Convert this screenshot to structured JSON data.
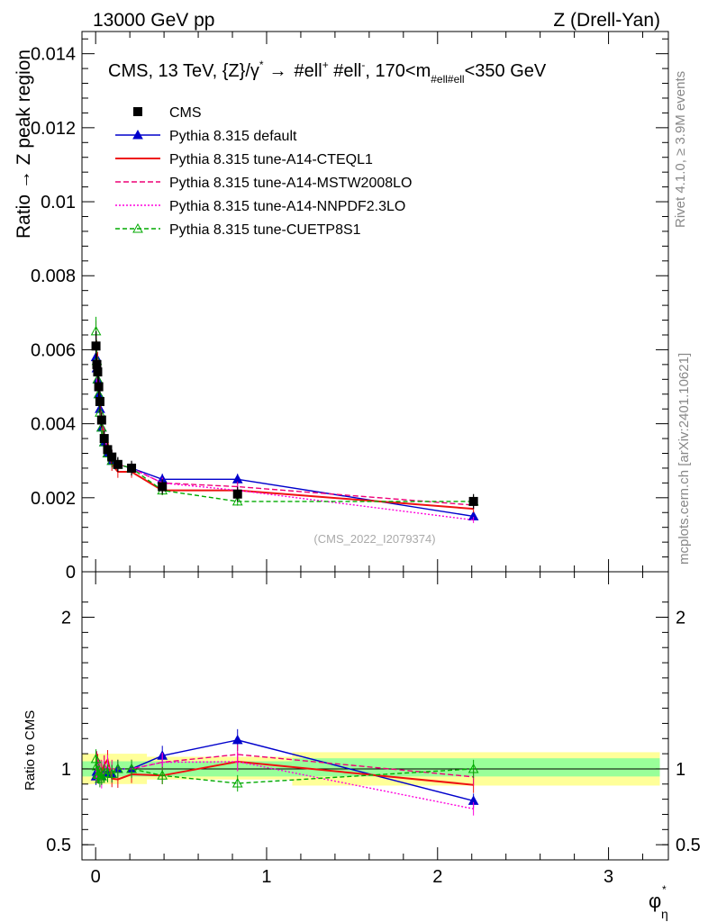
{
  "header": {
    "left": "13000 GeV pp",
    "right": "Z (Drell-Yan)"
  },
  "side_labels": {
    "rivet": "Rivet 4.1.0, ≥ 3.9M events",
    "mcplots": "mcplots.cern.ch [arXiv:2401.10621]"
  },
  "chart_data": {
    "type": "line",
    "title": "CMS, 13 TeV, {Z}/γ* → #ell+ #ell-, 170<m_#ell#ell<350 GeV",
    "title_parts": {
      "a": "CMS, 13 TeV, {Z}/γ",
      "star": "*",
      "arrow": "→",
      "b": "#ell",
      "bsup": "+",
      "c": " #ell",
      "csup": "-",
      "d": ", 170<m",
      "dsub": "#ell#ell",
      "e": "<350 GeV"
    },
    "analysis_id": "(CMS_2022_I2079374)",
    "xlabel": "φ*_η",
    "xlabel_parts": {
      "base": "φ",
      "sup": "*",
      "sub": "η"
    },
    "ylabel_main": "Ratio → Z peak region",
    "ylabel_ratio": "Ratio to CMS",
    "xlim": [
      -0.08,
      3.35
    ],
    "ylim_main": [
      0,
      0.0146
    ],
    "ylim_ratio": [
      0.4,
      2.3
    ],
    "x_ticks": [
      "0",
      "1",
      "2",
      "3"
    ],
    "y_ticks_main": [
      "0",
      "0.002",
      "0.004",
      "0.006",
      "0.008",
      "0.01",
      "0.012",
      "0.014"
    ],
    "y_ticks_ratio_left": [
      "0.5",
      "1",
      "2"
    ],
    "y_ticks_ratio_right": [
      "0.5",
      "1",
      "2"
    ],
    "x": [
      0.002,
      0.007,
      0.012,
      0.018,
      0.025,
      0.035,
      0.05,
      0.07,
      0.095,
      0.13,
      0.21,
      0.39,
      0.83,
      2.21
    ],
    "data": {
      "name": "CMS",
      "values": [
        0.0061,
        0.0056,
        0.0054,
        0.005,
        0.0046,
        0.0041,
        0.0036,
        0.0033,
        0.0031,
        0.0029,
        0.0028,
        0.0023,
        0.0021,
        0.0019
      ],
      "errors": [
        0.0004,
        0.0003,
        0.0003,
        0.0003,
        0.0003,
        0.0002,
        0.0002,
        0.0002,
        0.0002,
        0.0002,
        0.0002,
        0.0002,
        0.0002,
        0.0002
      ]
    },
    "series": [
      {
        "name": "Pythia 8.315 default",
        "color": "#0000cc",
        "dash": "",
        "marker": "triangle",
        "values": [
          0.0058,
          0.0055,
          0.0052,
          0.0048,
          0.0044,
          0.0039,
          0.0035,
          0.0032,
          0.003,
          0.0029,
          0.0028,
          0.0025,
          0.0025,
          0.0015
        ]
      },
      {
        "name": "Pythia 8.315 tune-A14-CTEQL1",
        "color": "#ee1111",
        "dash": "",
        "marker": "none",
        "values": [
          0.0062,
          0.0058,
          0.0056,
          0.0049,
          0.0045,
          0.004,
          0.0037,
          0.0035,
          0.0029,
          0.0027,
          0.0027,
          0.0022,
          0.0022,
          0.0017
        ]
      },
      {
        "name": "Pythia 8.315 tune-A14-MSTW2008LO",
        "color": "#ee0077",
        "dash": "6,3",
        "marker": "none",
        "values": [
          0.0064,
          0.0059,
          0.0055,
          0.005,
          0.0046,
          0.0041,
          0.0037,
          0.0033,
          0.0031,
          0.0029,
          0.0028,
          0.0024,
          0.0023,
          0.0018
        ]
      },
      {
        "name": "Pythia 8.315 tune-A14-NNPDF2.3LO",
        "color": "#ff00dd",
        "dash": "2,2",
        "marker": "none",
        "values": [
          0.006,
          0.0054,
          0.0053,
          0.0049,
          0.0043,
          0.0038,
          0.0036,
          0.0034,
          0.003,
          0.0029,
          0.0028,
          0.0024,
          0.0022,
          0.0014
        ]
      },
      {
        "name": "Pythia 8.315 tune-CUETP8S1",
        "color": "#00aa00",
        "dash": "5,3",
        "marker": "open-triangle",
        "values": [
          0.0065,
          0.0057,
          0.0052,
          0.0048,
          0.0043,
          0.0039,
          0.0035,
          0.0032,
          0.003,
          0.0029,
          0.0028,
          0.0022,
          0.0019,
          0.0019
        ]
      }
    ],
    "uncertainty_band": {
      "inner": [
        {
          "x0": -0.08,
          "x1": 1.15,
          "lo": 0.95,
          "hi": 1.05
        },
        {
          "x0": 1.15,
          "x1": 3.3,
          "lo": 0.95,
          "hi": 1.07
        }
      ],
      "outer": [
        {
          "x0": -0.08,
          "x1": 0.3,
          "lo": 0.9,
          "hi": 1.1
        },
        {
          "x0": 0.3,
          "x1": 1.15,
          "lo": 0.93,
          "hi": 1.08
        },
        {
          "x0": 1.15,
          "x1": 3.3,
          "lo": 0.89,
          "hi": 1.11
        }
      ]
    }
  }
}
